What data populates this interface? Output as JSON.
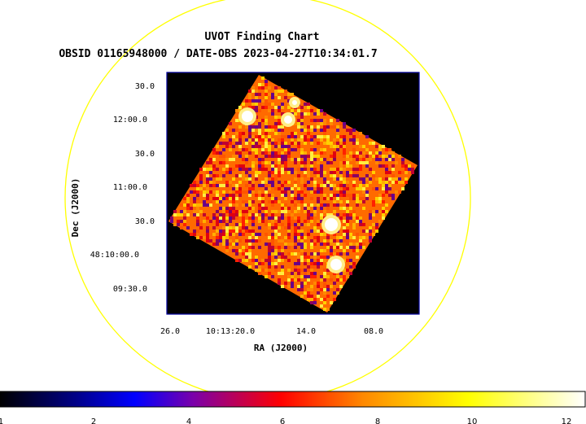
{
  "chart_data": {
    "type": "heatmap",
    "title": "UVOT Finding Chart",
    "subtitle": "OBSID 01165948000 / DATE-OBS 2023-04-27T10:34:01.7",
    "xlabel": "RA (J2000)",
    "ylabel": "Dec (J2000)",
    "x_tick_labels": [
      "26.0",
      "10:13:20.0",
      "14.0",
      "08.0"
    ],
    "y_tick_labels": [
      "30.0",
      "12:00.0",
      "30.0",
      "11:00.0",
      "30.0",
      "48:10:00.0",
      "09:30.0"
    ],
    "colorbar": {
      "ticks": [
        "1",
        "2",
        "4",
        "6",
        "8",
        "10",
        "12"
      ],
      "colormap": [
        "#000000",
        "#0000ff",
        "#7a00aa",
        "#ff0000",
        "#ff8800",
        "#ffff00",
        "#ffffff"
      ]
    },
    "overlay_circle_color": "#ffff00",
    "frame_color": "#0000a0"
  }
}
